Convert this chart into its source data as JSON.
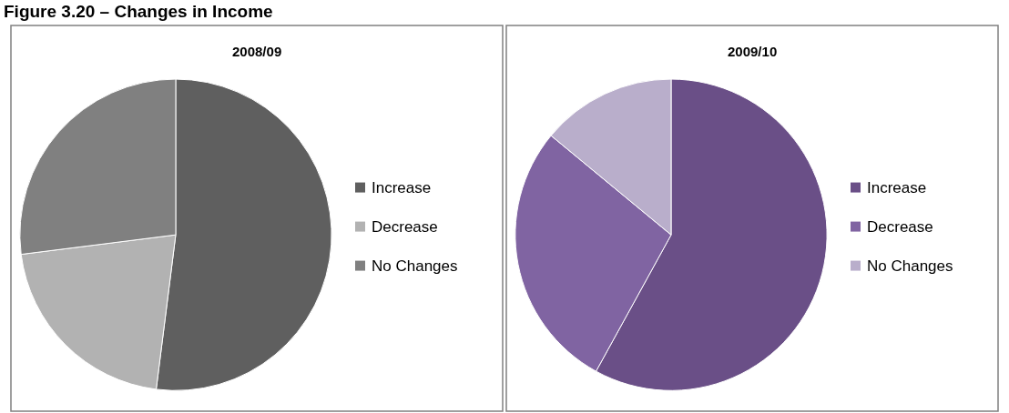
{
  "chart_data": [
    {
      "type": "pie",
      "title": "2008/09",
      "annotations": [
        "Figure 3.20 – Changes in Income"
      ],
      "categories": [
        "Increase",
        "Decrease",
        "No Changes"
      ],
      "values": [
        52,
        21,
        27
      ],
      "colors": [
        "#5f5f5f",
        "#b2b2b2",
        "#808080"
      ],
      "legend": "right"
    },
    {
      "type": "pie",
      "title": "2009/10",
      "categories": [
        "Increase",
        "Decrease",
        "No Changes"
      ],
      "values": [
        58,
        28,
        14
      ],
      "colors": [
        "#6a4f87",
        "#8064a2",
        "#b9aecb"
      ],
      "legend": "right"
    }
  ]
}
